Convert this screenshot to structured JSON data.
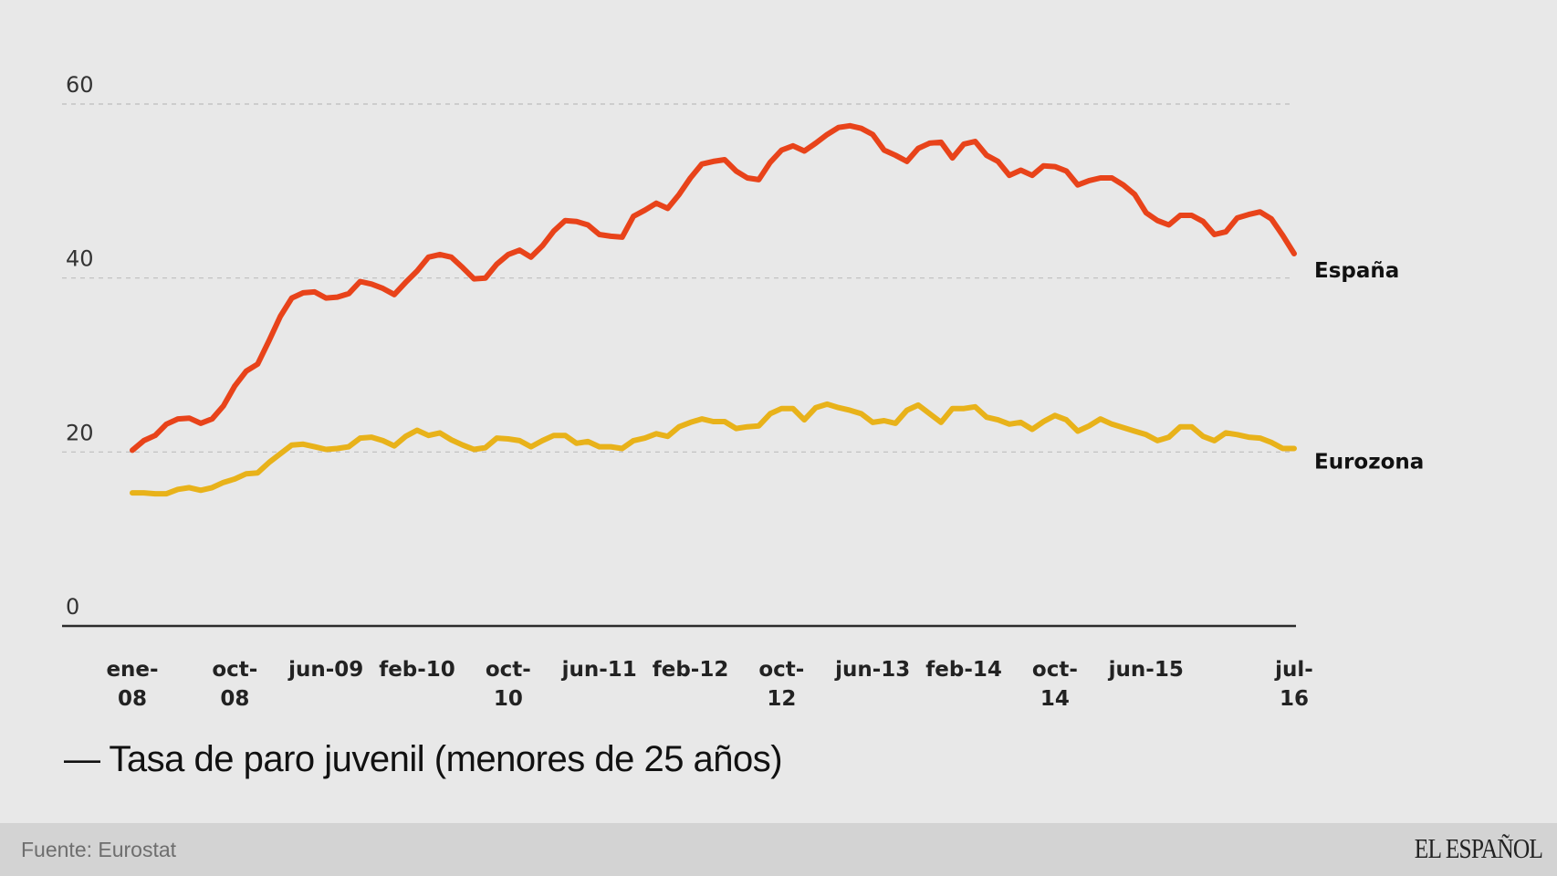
{
  "chart_data": {
    "type": "line",
    "title": "Tasa de paro juvenil (menores de 25 años)",
    "title_prefix": "—",
    "xlabel": "",
    "ylabel": "",
    "ylim": [
      0,
      60
    ],
    "yticks": [
      "0",
      "20",
      "40",
      "60"
    ],
    "ytick_values": [
      0,
      20,
      40,
      60
    ],
    "grid": true,
    "x_start": "ene-08",
    "x_end": "jul-16",
    "x_unit": "month",
    "xticks": [
      {
        "month": 0,
        "lines": [
          "ene-",
          "08"
        ]
      },
      {
        "month": 9,
        "lines": [
          "oct-",
          "08"
        ]
      },
      {
        "month": 17,
        "lines": [
          "jun-09"
        ]
      },
      {
        "month": 25,
        "lines": [
          "feb-10"
        ]
      },
      {
        "month": 33,
        "lines": [
          "oct-",
          "10"
        ]
      },
      {
        "month": 41,
        "lines": [
          "jun-11"
        ]
      },
      {
        "month": 49,
        "lines": [
          "feb-12"
        ]
      },
      {
        "month": 57,
        "lines": [
          "oct-",
          "12"
        ]
      },
      {
        "month": 65,
        "lines": [
          "jun-13"
        ]
      },
      {
        "month": 73,
        "lines": [
          "feb-14"
        ]
      },
      {
        "month": 81,
        "lines": [
          "oct-",
          "14"
        ]
      },
      {
        "month": 89,
        "lines": [
          "jun-15"
        ]
      },
      {
        "month": 102,
        "lines": [
          "jul-",
          "16"
        ]
      }
    ],
    "series": [
      {
        "name": "España",
        "color": "#e8431a",
        "values": [
          20.2,
          21.3,
          21.9,
          23.2,
          23.8,
          23.9,
          23.3,
          23.8,
          25.3,
          27.6,
          29.3,
          30.1,
          32.8,
          35.6,
          37.7,
          38.3,
          38.4,
          37.7,
          37.8,
          38.2,
          39.6,
          39.3,
          38.8,
          38.1,
          39.5,
          40.8,
          42.4,
          42.7,
          42.4,
          41.2,
          39.9,
          40.0,
          41.6,
          42.7,
          43.2,
          42.4,
          43.7,
          45.4,
          46.6,
          46.5,
          46.1,
          45.0,
          44.8,
          44.7,
          47.1,
          47.8,
          48.6,
          48.0,
          49.6,
          51.5,
          53.1,
          53.4,
          53.6,
          52.3,
          51.5,
          51.3,
          53.3,
          54.7,
          55.2,
          54.6,
          55.5,
          56.5,
          57.3,
          57.5,
          57.2,
          56.5,
          54.7,
          54.1,
          53.4,
          54.9,
          55.5,
          55.6,
          53.8,
          55.4,
          55.7,
          54.1,
          53.4,
          51.8,
          52.4,
          51.8,
          52.9,
          52.8,
          52.3,
          50.7,
          51.2,
          51.5,
          51.5,
          50.7,
          49.6,
          47.5,
          46.6,
          46.1,
          47.2,
          47.2,
          46.5,
          45.0,
          45.3,
          46.9,
          47.3,
          47.6,
          46.8,
          44.9,
          42.8
        ]
      },
      {
        "name": "Eurozona",
        "color": "#e8b21a",
        "values": [
          15.3,
          15.3,
          15.2,
          15.2,
          15.7,
          15.9,
          15.6,
          15.9,
          16.5,
          16.9,
          17.5,
          17.6,
          18.8,
          19.8,
          20.8,
          20.9,
          20.6,
          20.3,
          20.4,
          20.6,
          21.6,
          21.7,
          21.3,
          20.7,
          21.8,
          22.5,
          21.9,
          22.2,
          21.4,
          20.8,
          20.3,
          20.5,
          21.6,
          21.5,
          21.3,
          20.6,
          21.3,
          21.9,
          21.9,
          21.0,
          21.2,
          20.6,
          20.6,
          20.4,
          21.3,
          21.6,
          22.1,
          21.8,
          22.9,
          23.4,
          23.8,
          23.5,
          23.5,
          22.7,
          22.9,
          23.0,
          24.4,
          25.0,
          25.0,
          23.7,
          25.1,
          25.5,
          25.1,
          24.8,
          24.4,
          23.4,
          23.6,
          23.3,
          24.8,
          25.4,
          24.4,
          23.4,
          25.0,
          25.0,
          25.2,
          24.0,
          23.7,
          23.2,
          23.4,
          22.6,
          23.5,
          24.2,
          23.7,
          22.4,
          23.0,
          23.8,
          23.2,
          22.8,
          22.4,
          22.0,
          21.3,
          21.7,
          22.9,
          22.9,
          21.8,
          21.3,
          22.2,
          22.0,
          21.7,
          21.6,
          21.1,
          20.4,
          20.4
        ]
      }
    ]
  },
  "footer": {
    "source": "Fuente: Eurostat",
    "logo": "EL ESPAÑOL"
  }
}
